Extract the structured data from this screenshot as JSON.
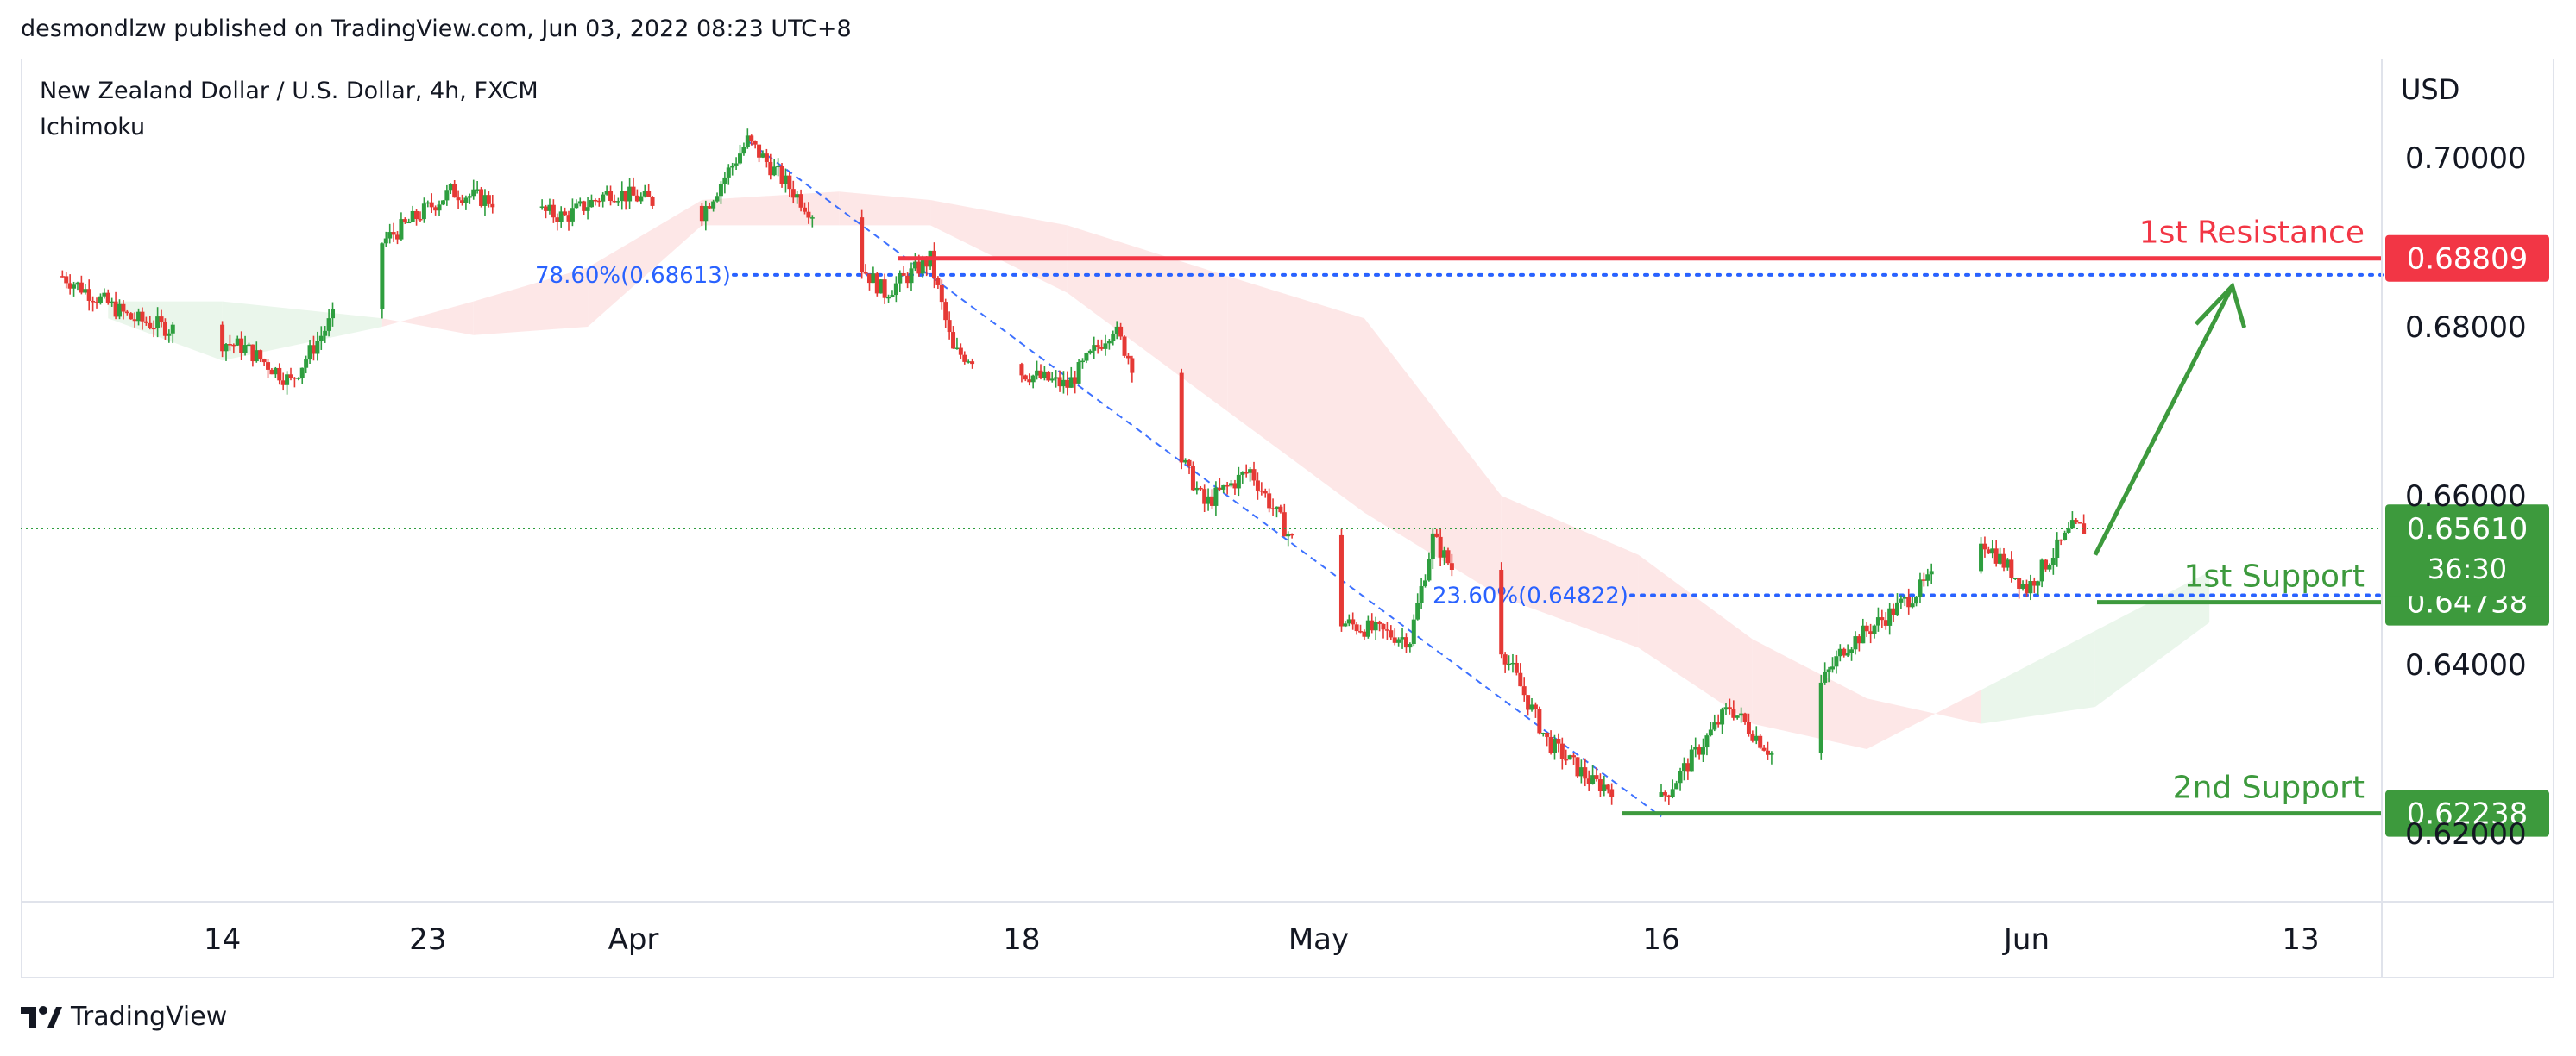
{
  "header": {
    "published_line": "desmondlzw published on TradingView.com, Jun 03, 2022 08:23 UTC+8"
  },
  "symbol": {
    "title": "New Zealand Dollar / U.S. Dollar, 4h, FXCM",
    "indicator": "Ichimoku"
  },
  "footer": {
    "brand": "TradingView",
    "logo_icon": "tradingview-logo-icon"
  },
  "colors": {
    "up": "#26a69a",
    "candle_up": "#2e9e3f",
    "candle_down": "#e53935",
    "resistance": "#f23645",
    "support": "#3d9a3d",
    "fib": "#2962ff",
    "cloud_bull": "#e8f5e9",
    "cloud_bear": "#fde4e4"
  },
  "chart_data": {
    "type": "candlestick",
    "currency_label": "USD",
    "y_ticks": [
      0.7,
      0.68,
      0.66,
      0.64,
      0.62
    ],
    "y_tick_labels": [
      "0.70000",
      "0.68000",
      "0.66000",
      "0.64000",
      "0.62000"
    ],
    "ylim": [
      0.6115,
      0.7112
    ],
    "x_labels": [
      "14",
      "23",
      "Apr",
      "18",
      "May",
      "16",
      "Jun",
      "13"
    ],
    "x_label_dates": [
      "2022-03-14",
      "2022-03-23",
      "2022-04-01",
      "2022-04-18",
      "2022-05-01",
      "2022-05-16",
      "2022-06-01",
      "2022-06-13"
    ],
    "current_price": {
      "value": 0.6561,
      "label": "0.65610",
      "countdown": "36:30"
    },
    "levels": [
      {
        "name": "1st Resistance",
        "value": 0.68809,
        "label": "0.68809",
        "color": "#f23645"
      },
      {
        "name": "1st Support",
        "value": 0.64738,
        "label": "0.64738",
        "color": "#3d9a3d"
      },
      {
        "name": "2nd Support",
        "value": 0.62238,
        "label": "0.62238",
        "color": "#3d9a3d"
      }
    ],
    "fib_levels": [
      {
        "label": "78.60%(0.68613)",
        "value": 0.68613
      },
      {
        "label": "23.60%(0.64822)",
        "value": 0.64822
      }
    ],
    "anchors": [
      {
        "date": "2022-03-07",
        "price": 0.686
      },
      {
        "date": "2022-03-10",
        "price": 0.681
      },
      {
        "date": "2022-03-15",
        "price": 0.6775
      },
      {
        "date": "2022-03-17",
        "price": 0.6735
      },
      {
        "date": "2022-03-21",
        "price": 0.69
      },
      {
        "date": "2022-03-24",
        "price": 0.696
      },
      {
        "date": "2022-03-29",
        "price": 0.693
      },
      {
        "date": "2022-03-31",
        "price": 0.696
      },
      {
        "date": "2022-04-04",
        "price": 0.6935
      },
      {
        "date": "2022-04-06",
        "price": 0.702
      },
      {
        "date": "2022-04-12",
        "price": 0.684
      },
      {
        "date": "2022-04-14",
        "price": 0.688
      },
      {
        "date": "2022-04-15",
        "price": 0.677
      },
      {
        "date": "2022-04-20",
        "price": 0.673
      },
      {
        "date": "2022-04-22",
        "price": 0.68
      },
      {
        "date": "2022-04-26",
        "price": 0.659
      },
      {
        "date": "2022-04-28",
        "price": 0.663
      },
      {
        "date": "2022-05-02",
        "price": 0.645
      },
      {
        "date": "2022-05-05",
        "price": 0.643
      },
      {
        "date": "2022-05-06",
        "price": 0.655
      },
      {
        "date": "2022-05-09",
        "price": 0.642
      },
      {
        "date": "2022-05-11",
        "price": 0.631
      },
      {
        "date": "2022-05-13",
        "price": 0.626
      },
      {
        "date": "2022-05-16",
        "price": 0.624
      },
      {
        "date": "2022-05-19",
        "price": 0.635
      },
      {
        "date": "2022-05-21",
        "price": 0.629
      },
      {
        "date": "2022-05-24",
        "price": 0.642
      },
      {
        "date": "2022-05-26",
        "price": 0.646
      },
      {
        "date": "2022-05-30",
        "price": 0.655
      },
      {
        "date": "2022-06-01",
        "price": 0.649
      },
      {
        "date": "2022-06-03",
        "price": 0.6561
      }
    ],
    "cloud": [
      {
        "date": "2022-03-09",
        "a": 0.683,
        "b": 0.681
      },
      {
        "date": "2022-03-14",
        "a": 0.683,
        "b": 0.676
      },
      {
        "date": "2022-03-21",
        "a": 0.681,
        "b": 0.68
      },
      {
        "date": "2022-03-25",
        "a": 0.679,
        "b": 0.683
      },
      {
        "date": "2022-03-30",
        "a": 0.68,
        "b": 0.687
      },
      {
        "date": "2022-04-04",
        "a": 0.692,
        "b": 0.695
      },
      {
        "date": "2022-04-10",
        "a": 0.692,
        "b": 0.696
      },
      {
        "date": "2022-04-14",
        "a": 0.692,
        "b": 0.695
      },
      {
        "date": "2022-04-20",
        "a": 0.684,
        "b": 0.692
      },
      {
        "date": "2022-04-27",
        "a": 0.67,
        "b": 0.686
      },
      {
        "date": "2022-05-03",
        "a": 0.658,
        "b": 0.681
      },
      {
        "date": "2022-05-09",
        "a": 0.648,
        "b": 0.66
      },
      {
        "date": "2022-05-15",
        "a": 0.642,
        "b": 0.653
      },
      {
        "date": "2022-05-20",
        "a": 0.633,
        "b": 0.643
      },
      {
        "date": "2022-05-25",
        "a": 0.63,
        "b": 0.636
      },
      {
        "date": "2022-05-30",
        "a": 0.637,
        "b": 0.633
      },
      {
        "date": "2022-06-04",
        "a": 0.644,
        "b": 0.635
      },
      {
        "date": "2022-06-09",
        "a": 0.651,
        "b": 0.645
      }
    ],
    "fib_line_from": {
      "date": "2022-04-06",
      "price": 0.702
    },
    "fib_line_to": {
      "date": "2022-05-16",
      "price": 0.622
    },
    "projection": {
      "from": {
        "date": "2022-06-04",
        "price": 0.653
      },
      "to": {
        "date": "2022-06-10",
        "price": 0.6848
      }
    }
  }
}
